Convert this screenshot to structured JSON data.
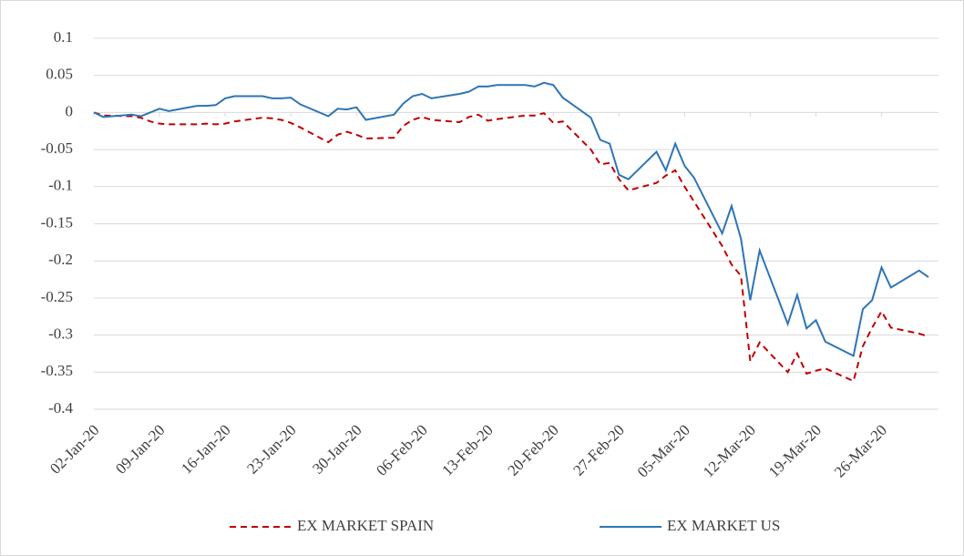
{
  "chart_data": {
    "type": "line",
    "x": [
      "2020-01-02",
      "2020-01-03",
      "2020-01-06",
      "2020-01-07",
      "2020-01-08",
      "2020-01-09",
      "2020-01-10",
      "2020-01-13",
      "2020-01-14",
      "2020-01-15",
      "2020-01-16",
      "2020-01-17",
      "2020-01-20",
      "2020-01-21",
      "2020-01-22",
      "2020-01-23",
      "2020-01-24",
      "2020-01-27",
      "2020-01-28",
      "2020-01-29",
      "2020-01-30",
      "2020-01-31",
      "2020-02-03",
      "2020-02-04",
      "2020-02-05",
      "2020-02-06",
      "2020-02-07",
      "2020-02-10",
      "2020-02-11",
      "2020-02-12",
      "2020-02-13",
      "2020-02-14",
      "2020-02-17",
      "2020-02-18",
      "2020-02-19",
      "2020-02-20",
      "2020-02-21",
      "2020-02-24",
      "2020-02-25",
      "2020-02-26",
      "2020-02-27",
      "2020-02-28",
      "2020-03-02",
      "2020-03-03",
      "2020-03-04",
      "2020-03-05",
      "2020-03-06",
      "2020-03-09",
      "2020-03-10",
      "2020-03-11",
      "2020-03-12",
      "2020-03-13",
      "2020-03-16",
      "2020-03-17",
      "2020-03-18",
      "2020-03-19",
      "2020-03-20",
      "2020-03-23",
      "2020-03-24",
      "2020-03-25",
      "2020-03-26",
      "2020-03-27",
      "2020-03-30",
      "2020-03-31"
    ],
    "series": [
      {
        "name": "EX MARKET SPAIN",
        "color": "#c00000",
        "line_style": "dashed",
        "values": [
          0,
          -0.004,
          -0.005,
          -0.007,
          -0.012,
          -0.015,
          -0.016,
          -0.016,
          -0.015,
          -0.016,
          -0.015,
          -0.012,
          -0.007,
          -0.008,
          -0.01,
          -0.014,
          -0.02,
          -0.04,
          -0.03,
          -0.026,
          -0.03,
          -0.035,
          -0.034,
          -0.018,
          -0.01,
          -0.006,
          -0.01,
          -0.013,
          -0.006,
          -0.003,
          -0.011,
          -0.009,
          -0.004,
          -0.004,
          -0.001,
          -0.014,
          -0.012,
          -0.05,
          -0.07,
          -0.068,
          -0.09,
          -0.105,
          -0.095,
          -0.085,
          -0.078,
          -0.1,
          -0.12,
          -0.18,
          -0.205,
          -0.22,
          -0.335,
          -0.31,
          -0.35,
          -0.325,
          -0.352,
          -0.348,
          -0.345,
          -0.362,
          -0.315,
          -0.29,
          -0.268,
          -0.29,
          -0.298,
          -0.302
        ]
      },
      {
        "name": "EX MARKET US",
        "color": "#2e75b6",
        "line_style": "solid",
        "values": [
          0,
          -0.006,
          -0.003,
          -0.005,
          0,
          0.005,
          0.002,
          0.009,
          0.009,
          0.01,
          0.019,
          0.022,
          0.022,
          0.019,
          0.019,
          0.02,
          0.011,
          -0.005,
          0.005,
          0.004,
          0.007,
          -0.01,
          -0.003,
          0.012,
          0.022,
          0.025,
          0.019,
          0.025,
          0.028,
          0.035,
          0.035,
          0.037,
          0.037,
          0.035,
          0.04,
          0.037,
          0.02,
          -0.007,
          -0.037,
          -0.042,
          -0.084,
          -0.09,
          -0.053,
          -0.078,
          -0.042,
          -0.072,
          -0.088,
          -0.163,
          -0.126,
          -0.17,
          -0.253,
          -0.186,
          -0.285,
          -0.246,
          -0.291,
          -0.28,
          -0.309,
          -0.328,
          -0.265,
          -0.253,
          -0.209,
          -0.236,
          -0.213,
          -0.222
        ]
      }
    ],
    "xlim": [
      "2020-01-02",
      "2020-03-31"
    ],
    "xticks": [
      {
        "value": "2020-01-02",
        "label": "02-Jan-20"
      },
      {
        "value": "2020-01-09",
        "label": "09-Jan-20"
      },
      {
        "value": "2020-01-16",
        "label": "16-Jan-20"
      },
      {
        "value": "2020-01-23",
        "label": "23-Jan-20"
      },
      {
        "value": "2020-01-30",
        "label": "30-Jan-20"
      },
      {
        "value": "2020-02-06",
        "label": "06-Feb-20"
      },
      {
        "value": "2020-02-13",
        "label": "13-Feb-20"
      },
      {
        "value": "2020-02-20",
        "label": "20-Feb-20"
      },
      {
        "value": "2020-02-27",
        "label": "27-Feb-20"
      },
      {
        "value": "2020-03-05",
        "label": "05-Mar-20"
      },
      {
        "value": "2020-03-12",
        "label": "12-Mar-20"
      },
      {
        "value": "2020-03-19",
        "label": "19-Mar-20"
      },
      {
        "value": "2020-03-26",
        "label": "26-Mar-20"
      }
    ],
    "ylim": [
      -0.4,
      0.1
    ],
    "yticks": [
      0.1,
      0.05,
      0,
      -0.05,
      -0.1,
      -0.15,
      -0.2,
      -0.25,
      -0.3,
      -0.35,
      -0.4
    ],
    "grid": true,
    "legend": "bottom"
  }
}
